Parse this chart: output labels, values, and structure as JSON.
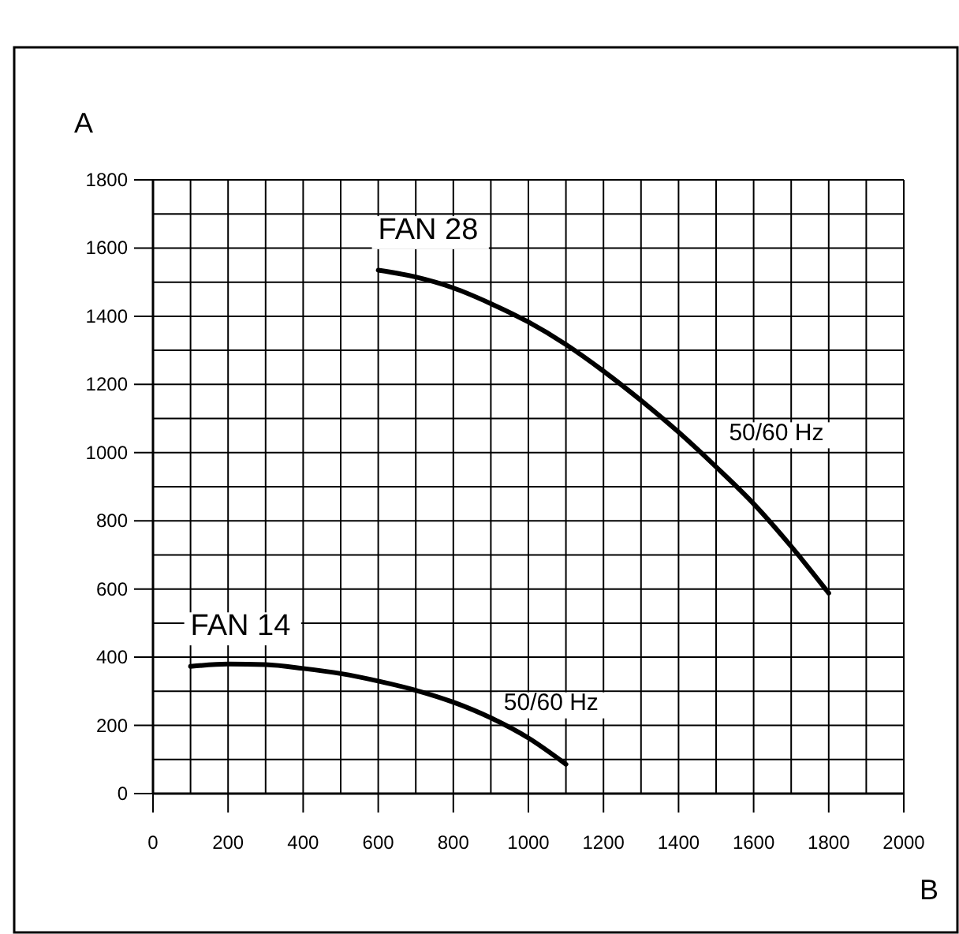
{
  "chart_data": {
    "type": "line",
    "xlabel": "B",
    "ylabel": "A",
    "xlim": [
      0,
      2000
    ],
    "ylim": [
      0,
      1800
    ],
    "xticks": [
      0,
      {
        "value": 100,
        "label": null
      },
      200,
      {
        "value": 300,
        "label": null
      },
      400,
      {
        "value": 500,
        "label": null
      },
      600,
      {
        "value": 700,
        "label": null
      },
      800,
      {
        "value": 900,
        "label": null
      },
      1000,
      {
        "value": 1100,
        "label": null
      },
      1200,
      {
        "value": 1300,
        "label": null
      },
      1400,
      {
        "value": 1500,
        "label": null
      },
      1600,
      {
        "value": 1700,
        "label": null
      },
      1800,
      {
        "value": 1900,
        "label": null
      },
      2000
    ],
    "yticks": [
      0,
      {
        "value": 100,
        "label": null
      },
      200,
      {
        "value": 300,
        "label": null
      },
      400,
      {
        "value": 500,
        "label": null
      },
      600,
      {
        "value": 700,
        "label": null
      },
      800,
      {
        "value": 900,
        "label": null
      },
      1000,
      {
        "value": 1100,
        "label": null
      },
      1200,
      {
        "value": 1300,
        "label": null
      },
      1400,
      {
        "value": 1500,
        "label": null
      },
      1600,
      {
        "value": 1700,
        "label": null
      },
      1800
    ],
    "grid": true,
    "marker": "none",
    "line_style": "solid",
    "series": [
      {
        "name": "FAN 28",
        "color": "#000000",
        "x": [
          600,
          700,
          800,
          900,
          1000,
          1100,
          1200,
          1300,
          1400,
          1500,
          1600,
          1700,
          1800
        ],
        "values": [
          1535,
          1515,
          1483,
          1437,
          1383,
          1317,
          1239,
          1153,
          1060,
          958,
          850,
          725,
          588
        ]
      },
      {
        "name": "FAN 14",
        "color": "#000000",
        "x": [
          100,
          200,
          300,
          400,
          500,
          600,
          700,
          800,
          900,
          1000,
          1100
        ],
        "values": [
          373,
          380,
          378,
          367,
          352,
          330,
          303,
          268,
          222,
          163,
          86
        ]
      }
    ],
    "annotations": [
      "50/60 Hz",
      "50/60 Hz"
    ]
  }
}
